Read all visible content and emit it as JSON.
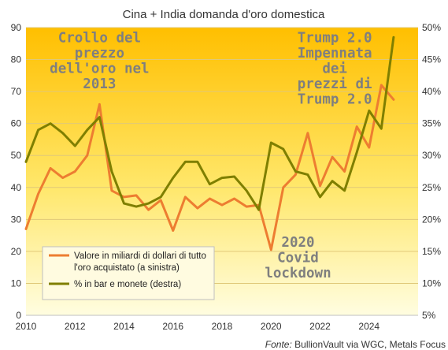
{
  "chart_data": {
    "type": "line",
    "title": "Cina + India domanda d'oro domestica",
    "source_label": "Fonte:",
    "source_text": " BullionVault via WGC, Metals Focus",
    "x_ticks": [
      "2010",
      "2012",
      "2014",
      "2016",
      "2018",
      "2020",
      "2022",
      "2024"
    ],
    "y_left_ticks": [
      "0",
      "10",
      "20",
      "30",
      "40",
      "50",
      "60",
      "70",
      "80",
      "90"
    ],
    "y_right_ticks": [
      "5%",
      "10%",
      "15%",
      "20%",
      "25%",
      "30%",
      "35%",
      "40%",
      "45%",
      "50%"
    ],
    "ylim_left": [
      0,
      90
    ],
    "ylim_right": [
      5,
      50
    ],
    "xlim": [
      2010,
      2026
    ],
    "legend_position": "bottom-left",
    "series": [
      {
        "name": "Valore in miliardi di dollari di tutto l'oro acquistato (a sinistra)",
        "axis": "left",
        "color": "#ed7d31",
        "x": [
          2010.0,
          2010.5,
          2011.0,
          2011.5,
          2012.0,
          2012.5,
          2013.0,
          2013.5,
          2014.0,
          2014.5,
          2015.0,
          2015.5,
          2016.0,
          2016.5,
          2017.0,
          2017.5,
          2018.0,
          2018.5,
          2019.0,
          2019.5,
          2020.0,
          2020.5,
          2021.0,
          2021.5,
          2022.0,
          2022.5,
          2023.0,
          2023.5,
          2024.0,
          2024.5,
          2025.0
        ],
        "values": [
          27,
          38,
          46,
          43,
          45,
          50,
          66,
          39,
          37,
          37.5,
          33,
          36,
          26.5,
          37,
          33.5,
          36.5,
          34.5,
          36.5,
          34,
          34.5,
          20.5,
          40,
          44,
          57,
          40.5,
          49.5,
          45,
          59,
          52.5,
          72,
          67.5
        ]
      },
      {
        "name": "% in bar e monete (destra)",
        "axis": "right",
        "color": "#7f7f00",
        "x": [
          2010.0,
          2010.5,
          2011.0,
          2011.5,
          2012.0,
          2012.5,
          2013.0,
          2013.5,
          2014.0,
          2014.5,
          2015.0,
          2015.5,
          2016.0,
          2016.5,
          2017.0,
          2017.5,
          2018.0,
          2018.5,
          2019.0,
          2019.5,
          2020.0,
          2020.5,
          2021.0,
          2021.5,
          2022.0,
          2022.5,
          2023.0,
          2023.5,
          2024.0,
          2024.5,
          2025.0
        ],
        "values": [
          29,
          34,
          35,
          33.5,
          31.5,
          34,
          36,
          27.5,
          22.5,
          22,
          22.5,
          23.5,
          26.5,
          29,
          29,
          25.5,
          26.5,
          26.7,
          24.5,
          21.5,
          32,
          31,
          27.5,
          27,
          23.5,
          26,
          24.5,
          30.5,
          37,
          34.2,
          48.5
        ]
      }
    ],
    "annotations": [
      {
        "lines": [
          "Crollo del",
          "prezzo",
          "dell'oro nel",
          "2013"
        ]
      },
      {
        "lines": [
          "Trump 2.0",
          "Impennata",
          "dei",
          "prezzi di",
          "Trump 2.0"
        ]
      },
      {
        "lines": [
          "2020",
          "Covid",
          "lockdown"
        ]
      }
    ]
  }
}
